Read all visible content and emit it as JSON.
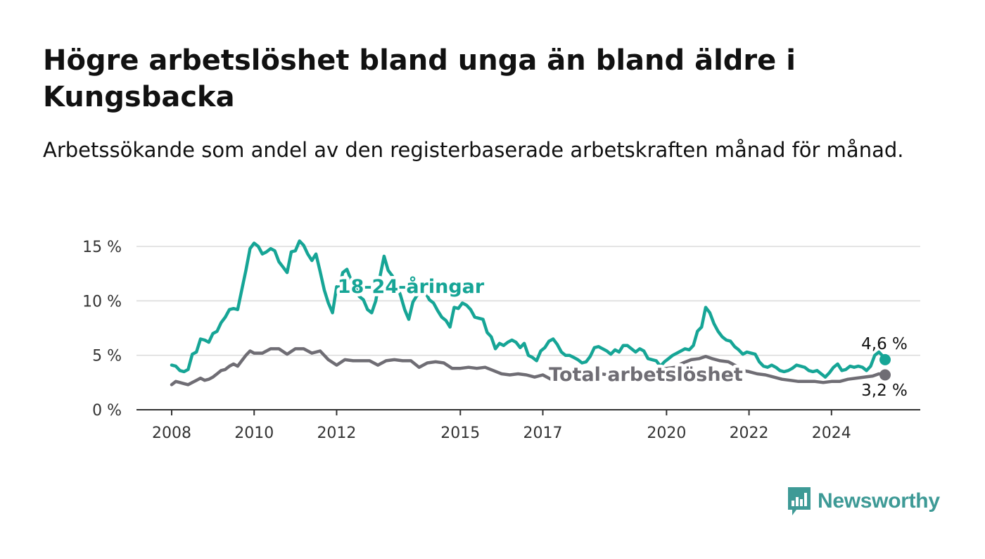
{
  "title": "Högre arbetslöshet bland unga än bland äldre i Kungsbacka",
  "subtitle": "Arbetssökande som andel av den registerbaserade arbetskraften månad för månad.",
  "brand": {
    "name": "Newsworthy",
    "color": "#3e9a96",
    "icon": "newsworthy-bar-chart-icon"
  },
  "chart_data": {
    "type": "line",
    "ylim": [
      0,
      15
    ],
    "xlim": [
      2008,
      2025.3
    ],
    "y_ticks": [
      {
        "value": 0,
        "label": "0 %"
      },
      {
        "value": 5,
        "label": "5 %"
      },
      {
        "value": 10,
        "label": "10 %"
      },
      {
        "value": 15,
        "label": "15 %"
      }
    ],
    "x_ticks": [
      {
        "value": 2008,
        "label": "2008"
      },
      {
        "value": 2010,
        "label": "2010"
      },
      {
        "value": 2012,
        "label": "2012"
      },
      {
        "value": 2015,
        "label": "2015"
      },
      {
        "value": 2017,
        "label": "2017"
      },
      {
        "value": 2020,
        "label": "2020"
      },
      {
        "value": 2022,
        "label": "2022"
      },
      {
        "value": 2024,
        "label": "2024"
      }
    ],
    "grid": true,
    "series": [
      {
        "name": "18-24-åringar",
        "color": "#16a596",
        "end_label": "4,6 %",
        "points": [
          [
            2008.0,
            4.1
          ],
          [
            2008.1,
            4.0
          ],
          [
            2008.2,
            3.6
          ],
          [
            2008.3,
            3.5
          ],
          [
            2008.4,
            3.7
          ],
          [
            2008.5,
            5.1
          ],
          [
            2008.6,
            5.3
          ],
          [
            2008.7,
            6.5
          ],
          [
            2008.8,
            6.4
          ],
          [
            2008.9,
            6.2
          ],
          [
            2009.0,
            7.0
          ],
          [
            2009.1,
            7.2
          ],
          [
            2009.2,
            8.0
          ],
          [
            2009.3,
            8.5
          ],
          [
            2009.4,
            9.2
          ],
          [
            2009.5,
            9.3
          ],
          [
            2009.6,
            9.2
          ],
          [
            2009.7,
            11.0
          ],
          [
            2009.8,
            12.8
          ],
          [
            2009.9,
            14.8
          ],
          [
            2010.0,
            15.3
          ],
          [
            2010.1,
            15.0
          ],
          [
            2010.2,
            14.3
          ],
          [
            2010.3,
            14.5
          ],
          [
            2010.4,
            14.8
          ],
          [
            2010.5,
            14.6
          ],
          [
            2010.6,
            13.6
          ],
          [
            2010.7,
            13.1
          ],
          [
            2010.8,
            12.6
          ],
          [
            2010.9,
            14.5
          ],
          [
            2011.0,
            14.6
          ],
          [
            2011.1,
            15.5
          ],
          [
            2011.2,
            15.1
          ],
          [
            2011.3,
            14.3
          ],
          [
            2011.4,
            13.7
          ],
          [
            2011.5,
            14.3
          ],
          [
            2011.6,
            12.7
          ],
          [
            2011.7,
            11.0
          ],
          [
            2011.8,
            9.8
          ],
          [
            2011.9,
            8.9
          ],
          [
            2012.0,
            11.3
          ],
          [
            2012.05,
            11.0
          ],
          [
            2012.15,
            12.6
          ],
          [
            2012.25,
            12.9
          ],
          [
            2012.35,
            11.9
          ],
          [
            2012.45,
            11.3
          ],
          [
            2012.55,
            10.4
          ],
          [
            2012.65,
            10.1
          ],
          [
            2012.75,
            9.2
          ],
          [
            2012.85,
            8.9
          ],
          [
            2012.95,
            10.0
          ],
          [
            2013.05,
            12.2
          ],
          [
            2013.15,
            14.1
          ],
          [
            2013.25,
            12.8
          ],
          [
            2013.35,
            12.3
          ],
          [
            2013.45,
            11.5
          ],
          [
            2013.55,
            10.5
          ],
          [
            2013.65,
            9.2
          ],
          [
            2013.75,
            8.3
          ],
          [
            2013.85,
            9.9
          ],
          [
            2013.95,
            10.5
          ],
          [
            2014.05,
            10.8
          ],
          [
            2014.15,
            10.8
          ],
          [
            2014.25,
            10.1
          ],
          [
            2014.35,
            9.8
          ],
          [
            2014.45,
            9.1
          ],
          [
            2014.55,
            8.5
          ],
          [
            2014.65,
            8.2
          ],
          [
            2014.75,
            7.6
          ],
          [
            2014.85,
            9.4
          ],
          [
            2014.95,
            9.3
          ],
          [
            2015.05,
            9.8
          ],
          [
            2015.15,
            9.6
          ],
          [
            2015.25,
            9.2
          ],
          [
            2015.35,
            8.5
          ],
          [
            2015.45,
            8.4
          ],
          [
            2015.55,
            8.3
          ],
          [
            2015.65,
            7.1
          ],
          [
            2015.75,
            6.7
          ],
          [
            2015.85,
            5.6
          ],
          [
            2015.95,
            6.1
          ],
          [
            2016.05,
            5.9
          ],
          [
            2016.15,
            6.2
          ],
          [
            2016.25,
            6.4
          ],
          [
            2016.35,
            6.2
          ],
          [
            2016.45,
            5.7
          ],
          [
            2016.55,
            6.1
          ],
          [
            2016.65,
            5.0
          ],
          [
            2016.75,
            4.8
          ],
          [
            2016.85,
            4.5
          ],
          [
            2016.95,
            5.4
          ],
          [
            2017.05,
            5.7
          ],
          [
            2017.15,
            6.3
          ],
          [
            2017.25,
            6.5
          ],
          [
            2017.35,
            6.0
          ],
          [
            2017.45,
            5.3
          ],
          [
            2017.55,
            5.0
          ],
          [
            2017.65,
            5.0
          ],
          [
            2017.75,
            4.8
          ],
          [
            2017.85,
            4.6
          ],
          [
            2017.95,
            4.3
          ],
          [
            2018.05,
            4.4
          ],
          [
            2018.15,
            4.9
          ],
          [
            2018.25,
            5.7
          ],
          [
            2018.35,
            5.8
          ],
          [
            2018.45,
            5.6
          ],
          [
            2018.55,
            5.4
          ],
          [
            2018.65,
            5.1
          ],
          [
            2018.75,
            5.5
          ],
          [
            2018.85,
            5.3
          ],
          [
            2018.95,
            5.9
          ],
          [
            2019.05,
            5.9
          ],
          [
            2019.15,
            5.6
          ],
          [
            2019.25,
            5.3
          ],
          [
            2019.35,
            5.6
          ],
          [
            2019.45,
            5.4
          ],
          [
            2019.55,
            4.7
          ],
          [
            2019.65,
            4.6
          ],
          [
            2019.75,
            4.5
          ],
          [
            2019.85,
            4.0
          ],
          [
            2019.95,
            4.4
          ],
          [
            2020.05,
            4.7
          ],
          [
            2020.15,
            5.0
          ],
          [
            2020.25,
            5.2
          ],
          [
            2020.35,
            5.4
          ],
          [
            2020.45,
            5.6
          ],
          [
            2020.55,
            5.5
          ],
          [
            2020.65,
            5.9
          ],
          [
            2020.75,
            7.2
          ],
          [
            2020.85,
            7.6
          ],
          [
            2020.95,
            9.4
          ],
          [
            2021.05,
            8.9
          ],
          [
            2021.15,
            7.9
          ],
          [
            2021.25,
            7.2
          ],
          [
            2021.35,
            6.7
          ],
          [
            2021.45,
            6.4
          ],
          [
            2021.55,
            6.3
          ],
          [
            2021.65,
            5.8
          ],
          [
            2021.75,
            5.5
          ],
          [
            2021.85,
            5.1
          ],
          [
            2021.95,
            5.3
          ],
          [
            2022.05,
            5.2
          ],
          [
            2022.15,
            5.1
          ],
          [
            2022.25,
            4.4
          ],
          [
            2022.35,
            4.0
          ],
          [
            2022.45,
            3.9
          ],
          [
            2022.55,
            4.1
          ],
          [
            2022.65,
            3.9
          ],
          [
            2022.75,
            3.6
          ],
          [
            2022.85,
            3.5
          ],
          [
            2022.95,
            3.6
          ],
          [
            2023.05,
            3.8
          ],
          [
            2023.15,
            4.1
          ],
          [
            2023.25,
            4.0
          ],
          [
            2023.35,
            3.9
          ],
          [
            2023.45,
            3.6
          ],
          [
            2023.55,
            3.5
          ],
          [
            2023.65,
            3.6
          ],
          [
            2023.75,
            3.3
          ],
          [
            2023.85,
            3.0
          ],
          [
            2023.95,
            3.4
          ],
          [
            2024.05,
            3.9
          ],
          [
            2024.15,
            4.2
          ],
          [
            2024.25,
            3.6
          ],
          [
            2024.35,
            3.7
          ],
          [
            2024.45,
            4.0
          ],
          [
            2024.55,
            3.9
          ],
          [
            2024.65,
            4.0
          ],
          [
            2024.75,
            3.9
          ],
          [
            2024.85,
            3.6
          ],
          [
            2024.95,
            4.0
          ],
          [
            2025.05,
            5.0
          ],
          [
            2025.15,
            5.3
          ],
          [
            2025.25,
            4.9
          ],
          [
            2025.3,
            4.6
          ]
        ]
      },
      {
        "name": "Total arbetslöshet",
        "color": "#6f6d74",
        "end_label": "3,2 %",
        "points": [
          [
            2008.0,
            2.3
          ],
          [
            2008.1,
            2.6
          ],
          [
            2008.2,
            2.5
          ],
          [
            2008.3,
            2.4
          ],
          [
            2008.4,
            2.3
          ],
          [
            2008.5,
            2.5
          ],
          [
            2008.6,
            2.7
          ],
          [
            2008.7,
            2.9
          ],
          [
            2008.8,
            2.7
          ],
          [
            2008.9,
            2.8
          ],
          [
            2009.0,
            3.0
          ],
          [
            2009.1,
            3.3
          ],
          [
            2009.2,
            3.6
          ],
          [
            2009.3,
            3.7
          ],
          [
            2009.4,
            4.0
          ],
          [
            2009.5,
            4.2
          ],
          [
            2009.6,
            4.0
          ],
          [
            2009.7,
            4.5
          ],
          [
            2009.8,
            5.0
          ],
          [
            2009.9,
            5.4
          ],
          [
            2010.0,
            5.2
          ],
          [
            2010.2,
            5.2
          ],
          [
            2010.4,
            5.6
          ],
          [
            2010.6,
            5.6
          ],
          [
            2010.8,
            5.1
          ],
          [
            2011.0,
            5.6
          ],
          [
            2011.2,
            5.6
          ],
          [
            2011.4,
            5.2
          ],
          [
            2011.6,
            5.4
          ],
          [
            2011.8,
            4.6
          ],
          [
            2012.0,
            4.1
          ],
          [
            2012.2,
            4.6
          ],
          [
            2012.4,
            4.5
          ],
          [
            2012.6,
            4.5
          ],
          [
            2012.8,
            4.5
          ],
          [
            2013.0,
            4.1
          ],
          [
            2013.2,
            4.5
          ],
          [
            2013.4,
            4.6
          ],
          [
            2013.6,
            4.5
          ],
          [
            2013.8,
            4.5
          ],
          [
            2014.0,
            3.9
          ],
          [
            2014.2,
            4.3
          ],
          [
            2014.4,
            4.4
          ],
          [
            2014.6,
            4.3
          ],
          [
            2014.8,
            3.8
          ],
          [
            2015.0,
            3.8
          ],
          [
            2015.2,
            3.9
          ],
          [
            2015.4,
            3.8
          ],
          [
            2015.6,
            3.9
          ],
          [
            2015.8,
            3.6
          ],
          [
            2016.0,
            3.3
          ],
          [
            2016.2,
            3.2
          ],
          [
            2016.4,
            3.3
          ],
          [
            2016.6,
            3.2
          ],
          [
            2016.8,
            3.0
          ],
          [
            2017.0,
            3.2
          ],
          [
            2017.2,
            2.8
          ],
          [
            2017.4,
            3.2
          ],
          [
            2017.6,
            3.2
          ],
          [
            2017.8,
            3.4
          ],
          [
            2018.0,
            3.3
          ],
          [
            2018.2,
            3.4
          ],
          [
            2018.4,
            3.3
          ],
          [
            2018.6,
            3.2
          ],
          [
            2018.8,
            3.3
          ],
          [
            2019.0,
            3.3
          ],
          [
            2019.2,
            3.2
          ],
          [
            2019.4,
            3.4
          ],
          [
            2019.6,
            3.5
          ],
          [
            2019.8,
            3.7
          ],
          [
            2020.0,
            3.8
          ],
          [
            2020.2,
            3.9
          ],
          [
            2020.4,
            4.3
          ],
          [
            2020.6,
            4.6
          ],
          [
            2020.8,
            4.7
          ],
          [
            2020.95,
            4.9
          ],
          [
            2021.1,
            4.7
          ],
          [
            2021.3,
            4.5
          ],
          [
            2021.5,
            4.4
          ],
          [
            2021.7,
            4.0
          ],
          [
            2021.85,
            3.6
          ],
          [
            2022.0,
            3.5
          ],
          [
            2022.2,
            3.3
          ],
          [
            2022.4,
            3.2
          ],
          [
            2022.6,
            3.0
          ],
          [
            2022.8,
            2.8
          ],
          [
            2023.0,
            2.7
          ],
          [
            2023.2,
            2.6
          ],
          [
            2023.4,
            2.6
          ],
          [
            2023.6,
            2.6
          ],
          [
            2023.8,
            2.5
          ],
          [
            2024.0,
            2.6
          ],
          [
            2024.2,
            2.6
          ],
          [
            2024.4,
            2.8
          ],
          [
            2024.6,
            2.9
          ],
          [
            2024.8,
            3.0
          ],
          [
            2025.0,
            3.1
          ],
          [
            2025.15,
            3.3
          ],
          [
            2025.3,
            3.2
          ]
        ]
      }
    ]
  }
}
